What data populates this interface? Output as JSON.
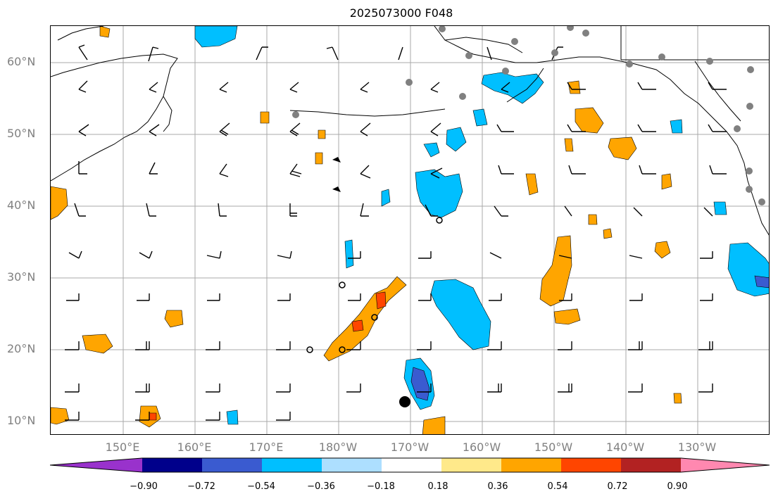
{
  "title": "2025073000 F048",
  "lat_labels": [
    "60°N",
    "50°N",
    "40°N",
    "30°N",
    "20°N",
    "10°N"
  ],
  "lon_labels": [
    "150°E",
    "160°E",
    "170°E",
    "180°W",
    "170°W",
    "160°W",
    "150°W",
    "140°W",
    "130°W"
  ],
  "colorbar": {
    "ticks": [
      "−0.90",
      "−0.72",
      "−0.54",
      "−0.36",
      "−0.18",
      "0.18",
      "0.36",
      "0.54",
      "0.72",
      "0.90"
    ],
    "colors": [
      "#9932CC",
      "#00008B",
      "#3A5BD0",
      "#00BFFF",
      "#ADDFFF",
      "#FFFFFF",
      "#FFE98A",
      "#FFA500",
      "#FF4500",
      "#B22222",
      "#FF88B0"
    ]
  },
  "legend_colors": {
    "land_border": "#000000",
    "grid": "#A0A0A0",
    "station_marker": "#808080"
  }
}
